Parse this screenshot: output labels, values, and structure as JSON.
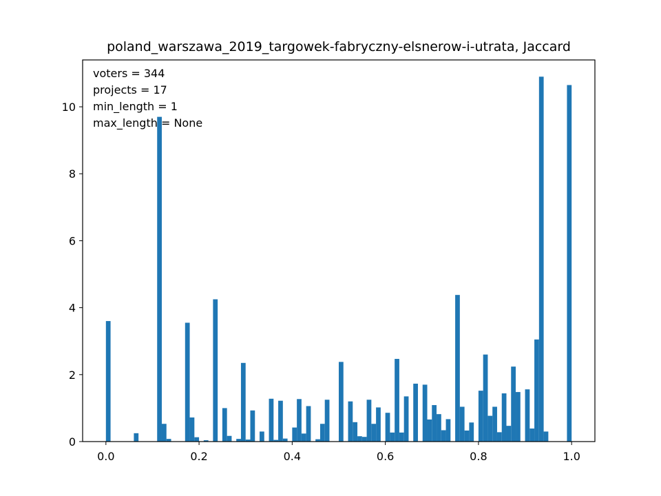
{
  "chart_data": {
    "type": "bar",
    "title": "poland_warszawa_2019_targowek-fabryczny-elsnerow-i-utrata, Jaccard",
    "xlabel": "",
    "ylabel": "",
    "xlim": [
      -0.05,
      1.05
    ],
    "ylim": [
      0,
      11.4
    ],
    "xticks": [
      0.0,
      0.2,
      0.4,
      0.6,
      0.8,
      1.0
    ],
    "xtick_labels": [
      "0.0",
      "0.2",
      "0.4",
      "0.6",
      "0.8",
      "1.0"
    ],
    "yticks": [
      0,
      2,
      4,
      6,
      8,
      10
    ],
    "ytick_labels": [
      "0",
      "2",
      "4",
      "6",
      "8",
      "10"
    ],
    "bin_width": 0.01,
    "bar_color": "#1f77b4",
    "annotations": [
      "voters = 344",
      "projects = 17",
      "min_length = 1",
      "max_length = None"
    ],
    "bins": [
      [
        0.0,
        3.6
      ],
      [
        0.06,
        0.25
      ],
      [
        0.11,
        9.7
      ],
      [
        0.12,
        0.53
      ],
      [
        0.13,
        0.08
      ],
      [
        0.17,
        3.55
      ],
      [
        0.18,
        0.72
      ],
      [
        0.19,
        0.13
      ],
      [
        0.21,
        0.04
      ],
      [
        0.23,
        4.25
      ],
      [
        0.25,
        1.0
      ],
      [
        0.26,
        0.17
      ],
      [
        0.28,
        0.08
      ],
      [
        0.29,
        2.35
      ],
      [
        0.3,
        0.06
      ],
      [
        0.31,
        0.93
      ],
      [
        0.33,
        0.3
      ],
      [
        0.35,
        1.28
      ],
      [
        0.36,
        0.05
      ],
      [
        0.37,
        1.22
      ],
      [
        0.38,
        0.09
      ],
      [
        0.4,
        0.42
      ],
      [
        0.41,
        1.27
      ],
      [
        0.42,
        0.24
      ],
      [
        0.43,
        1.06
      ],
      [
        0.45,
        0.07
      ],
      [
        0.46,
        0.53
      ],
      [
        0.47,
        1.25
      ],
      [
        0.5,
        2.38
      ],
      [
        0.52,
        1.2
      ],
      [
        0.53,
        0.58
      ],
      [
        0.54,
        0.16
      ],
      [
        0.55,
        0.14
      ],
      [
        0.56,
        1.25
      ],
      [
        0.57,
        0.53
      ],
      [
        0.58,
        1.02
      ],
      [
        0.6,
        0.86
      ],
      [
        0.61,
        0.27
      ],
      [
        0.62,
        2.47
      ],
      [
        0.63,
        0.27
      ],
      [
        0.64,
        1.35
      ],
      [
        0.66,
        1.73
      ],
      [
        0.68,
        1.7
      ],
      [
        0.69,
        0.66
      ],
      [
        0.7,
        1.09
      ],
      [
        0.71,
        0.82
      ],
      [
        0.72,
        0.34
      ],
      [
        0.73,
        0.67
      ],
      [
        0.75,
        4.38
      ],
      [
        0.76,
        1.04
      ],
      [
        0.77,
        0.33
      ],
      [
        0.78,
        0.57
      ],
      [
        0.8,
        1.52
      ],
      [
        0.81,
        2.6
      ],
      [
        0.82,
        0.77
      ],
      [
        0.83,
        1.04
      ],
      [
        0.84,
        0.28
      ],
      [
        0.85,
        1.44
      ],
      [
        0.86,
        0.47
      ],
      [
        0.87,
        2.24
      ],
      [
        0.88,
        1.48
      ],
      [
        0.9,
        1.56
      ],
      [
        0.91,
        0.39
      ],
      [
        0.92,
        3.05
      ],
      [
        0.93,
        10.9
      ],
      [
        0.94,
        0.3
      ],
      [
        0.99,
        10.65
      ]
    ]
  }
}
